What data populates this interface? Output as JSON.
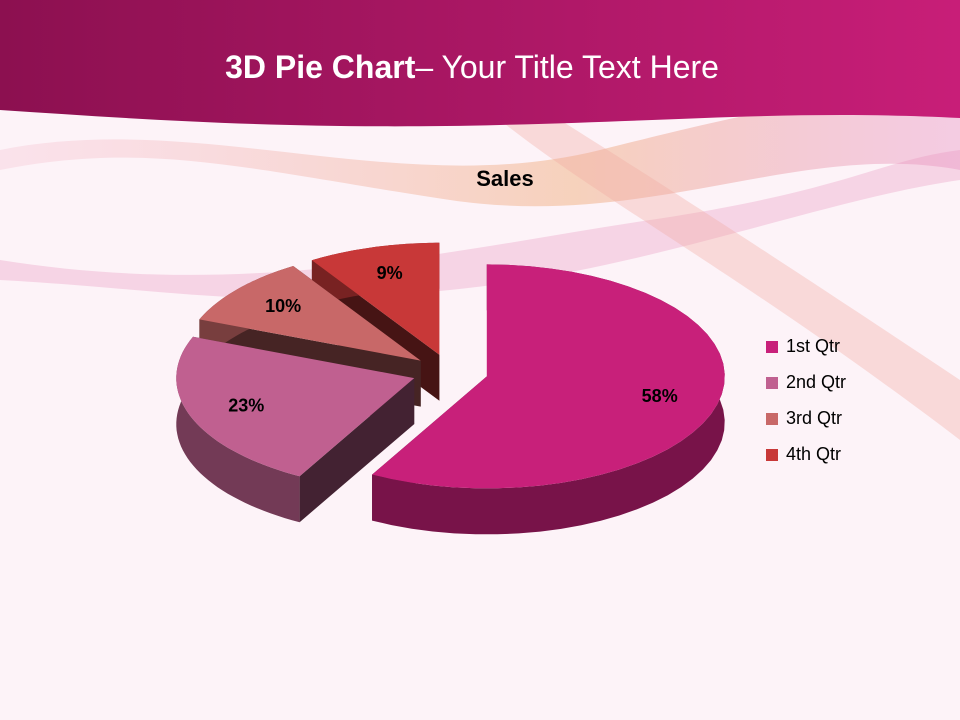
{
  "slide": {
    "title_bold": "3D Pie Chart",
    "title_rest": "– Your Title Text Here"
  },
  "chart_data": {
    "type": "pie",
    "title": "Sales",
    "categories": [
      "1st Qtr",
      "2nd Qtr",
      "3rd Qtr",
      "4th Qtr"
    ],
    "values": [
      58,
      23,
      10,
      9
    ],
    "value_labels": [
      "58%",
      "23%",
      "10%",
      "9%"
    ],
    "colors": [
      "#c8207a",
      "#c06090",
      "#c86868",
      "#c83838"
    ],
    "legend": "right"
  }
}
